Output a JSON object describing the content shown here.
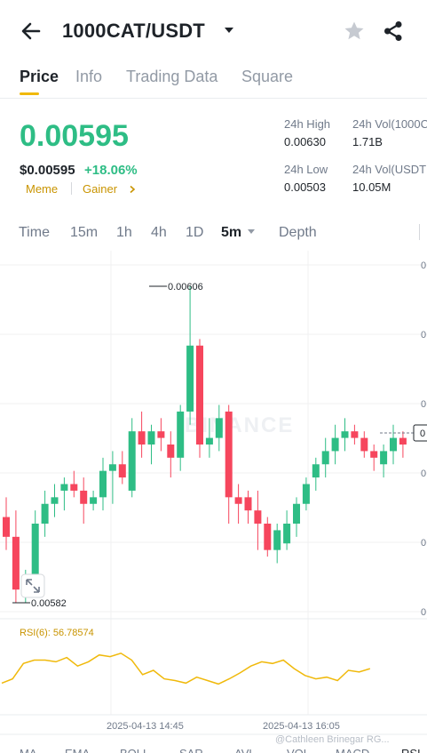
{
  "header": {
    "pair": "1000CAT/USDT"
  },
  "tabs": [
    {
      "label": "Price"
    },
    {
      "label": "Info"
    },
    {
      "label": "Trading Data"
    },
    {
      "label": "Square"
    }
  ],
  "price": {
    "last": "0.00595",
    "usd": "$0.00595",
    "change": "+18.06%",
    "tags": [
      "Meme",
      "Gainer"
    ]
  },
  "stats": {
    "high_label": "24h High",
    "high_value": "0.00630",
    "low_label": "24h Low",
    "low_value": "0.00503",
    "vol1_label": "24h Vol(1000C",
    "vol1_value": "1.71B",
    "vol2_label": "24h Vol(USDT",
    "vol2_value": "10.05M"
  },
  "intervals": [
    {
      "label": "Time"
    },
    {
      "label": "15m"
    },
    {
      "label": "1h"
    },
    {
      "label": "4h"
    },
    {
      "label": "1D"
    },
    {
      "label": "5m"
    },
    {
      "label": "Depth"
    }
  ],
  "chart_annotations": {
    "high_label": "0.00606",
    "low_label": "0.00582",
    "watermark": "BINANCE",
    "rsi_label": "RSI(6): 56.78574",
    "time_labels": [
      "2025-04-13 14:45",
      "2025-04-13 16:05"
    ],
    "axis_labels": [
      "0",
      "0",
      "0",
      "0",
      "0",
      "0"
    ],
    "current_price_label": "0",
    "indicator_tabs": [
      "MA",
      "EMA",
      "BOLL",
      "SAR",
      "AVL",
      "VOL",
      "MACD",
      "RSI"
    ],
    "credit": "@Cathleen Brinegar RG..."
  },
  "colors": {
    "up": "#2ebd85",
    "down": "#f6465d",
    "accent": "#f0b90b",
    "rsi": "#f0b90b"
  },
  "chart_data": {
    "type": "candlestick",
    "price_high_marker": 0.00606,
    "price_low_marker": 0.00582,
    "candles": [
      {
        "o": 0.005885,
        "h": 0.0059,
        "l": 0.00586,
        "c": 0.00587
      },
      {
        "o": 0.00587,
        "h": 0.00589,
        "l": 0.00582,
        "c": 0.00583
      },
      {
        "o": 0.00583,
        "h": 0.005845,
        "l": 0.00582,
        "c": 0.005835
      },
      {
        "o": 0.00584,
        "h": 0.00589,
        "l": 0.00583,
        "c": 0.00588
      },
      {
        "o": 0.00588,
        "h": 0.005905,
        "l": 0.00587,
        "c": 0.005895
      },
      {
        "o": 0.005895,
        "h": 0.00591,
        "l": 0.005885,
        "c": 0.0059
      },
      {
        "o": 0.005905,
        "h": 0.005915,
        "l": 0.00589,
        "c": 0.00591
      },
      {
        "o": 0.00591,
        "h": 0.00592,
        "l": 0.0059,
        "c": 0.005905
      },
      {
        "o": 0.005905,
        "h": 0.005915,
        "l": 0.00588,
        "c": 0.005895
      },
      {
        "o": 0.005895,
        "h": 0.005905,
        "l": 0.00589,
        "c": 0.0059
      },
      {
        "o": 0.0059,
        "h": 0.00593,
        "l": 0.00589,
        "c": 0.00592
      },
      {
        "o": 0.00592,
        "h": 0.005935,
        "l": 0.005895,
        "c": 0.005925
      },
      {
        "o": 0.005925,
        "h": 0.005935,
        "l": 0.00591,
        "c": 0.005915
      },
      {
        "o": 0.005905,
        "h": 0.00596,
        "l": 0.0059,
        "c": 0.00595
      },
      {
        "o": 0.00595,
        "h": 0.005965,
        "l": 0.00593,
        "c": 0.00594
      },
      {
        "o": 0.00594,
        "h": 0.005955,
        "l": 0.005925,
        "c": 0.00595
      },
      {
        "o": 0.00595,
        "h": 0.00596,
        "l": 0.005935,
        "c": 0.005945
      },
      {
        "o": 0.00594,
        "h": 0.00595,
        "l": 0.005915,
        "c": 0.00593
      },
      {
        "o": 0.00593,
        "h": 0.00597,
        "l": 0.00592,
        "c": 0.005965
      },
      {
        "o": 0.005965,
        "h": 0.00606,
        "l": 0.005955,
        "c": 0.006015
      },
      {
        "o": 0.006015,
        "h": 0.00602,
        "l": 0.00593,
        "c": 0.00594
      },
      {
        "o": 0.00594,
        "h": 0.00596,
        "l": 0.00593,
        "c": 0.005945
      },
      {
        "o": 0.005945,
        "h": 0.00597,
        "l": 0.005935,
        "c": 0.00596
      },
      {
        "o": 0.005965,
        "h": 0.00597,
        "l": 0.00588,
        "c": 0.0059
      },
      {
        "o": 0.0059,
        "h": 0.00591,
        "l": 0.00588,
        "c": 0.005895
      },
      {
        "o": 0.0059,
        "h": 0.005905,
        "l": 0.00588,
        "c": 0.00589
      },
      {
        "o": 0.00589,
        "h": 0.005905,
        "l": 0.00586,
        "c": 0.00588
      },
      {
        "o": 0.00588,
        "h": 0.005885,
        "l": 0.005855,
        "c": 0.00586
      },
      {
        "o": 0.00586,
        "h": 0.00588,
        "l": 0.00585,
        "c": 0.005875
      },
      {
        "o": 0.005865,
        "h": 0.00589,
        "l": 0.00586,
        "c": 0.00588
      },
      {
        "o": 0.00588,
        "h": 0.0059,
        "l": 0.00587,
        "c": 0.005895
      },
      {
        "o": 0.005895,
        "h": 0.005915,
        "l": 0.00589,
        "c": 0.00591
      },
      {
        "o": 0.005915,
        "h": 0.00593,
        "l": 0.005905,
        "c": 0.005925
      },
      {
        "o": 0.005925,
        "h": 0.005945,
        "l": 0.005915,
        "c": 0.005935
      },
      {
        "o": 0.005935,
        "h": 0.005955,
        "l": 0.005925,
        "c": 0.005945
      },
      {
        "o": 0.005945,
        "h": 0.00596,
        "l": 0.005935,
        "c": 0.00595
      },
      {
        "o": 0.00595,
        "h": 0.005955,
        "l": 0.00594,
        "c": 0.005945
      },
      {
        "o": 0.005945,
        "h": 0.00595,
        "l": 0.00593,
        "c": 0.005935
      },
      {
        "o": 0.005935,
        "h": 0.00594,
        "l": 0.00592,
        "c": 0.00593
      },
      {
        "o": 0.005925,
        "h": 0.00594,
        "l": 0.005915,
        "c": 0.005935
      },
      {
        "o": 0.005935,
        "h": 0.005955,
        "l": 0.005925,
        "c": 0.005945
      },
      {
        "o": 0.005945,
        "h": 0.00595,
        "l": 0.00593,
        "c": 0.00594
      }
    ],
    "rsi": [
      35,
      40,
      58,
      62,
      62,
      60,
      65,
      55,
      60,
      68,
      66,
      70,
      62,
      45,
      50,
      40,
      38,
      35,
      42,
      38,
      34,
      40,
      47,
      55,
      60,
      58,
      62,
      52,
      44,
      40,
      42,
      38,
      50,
      48,
      52
    ]
  }
}
